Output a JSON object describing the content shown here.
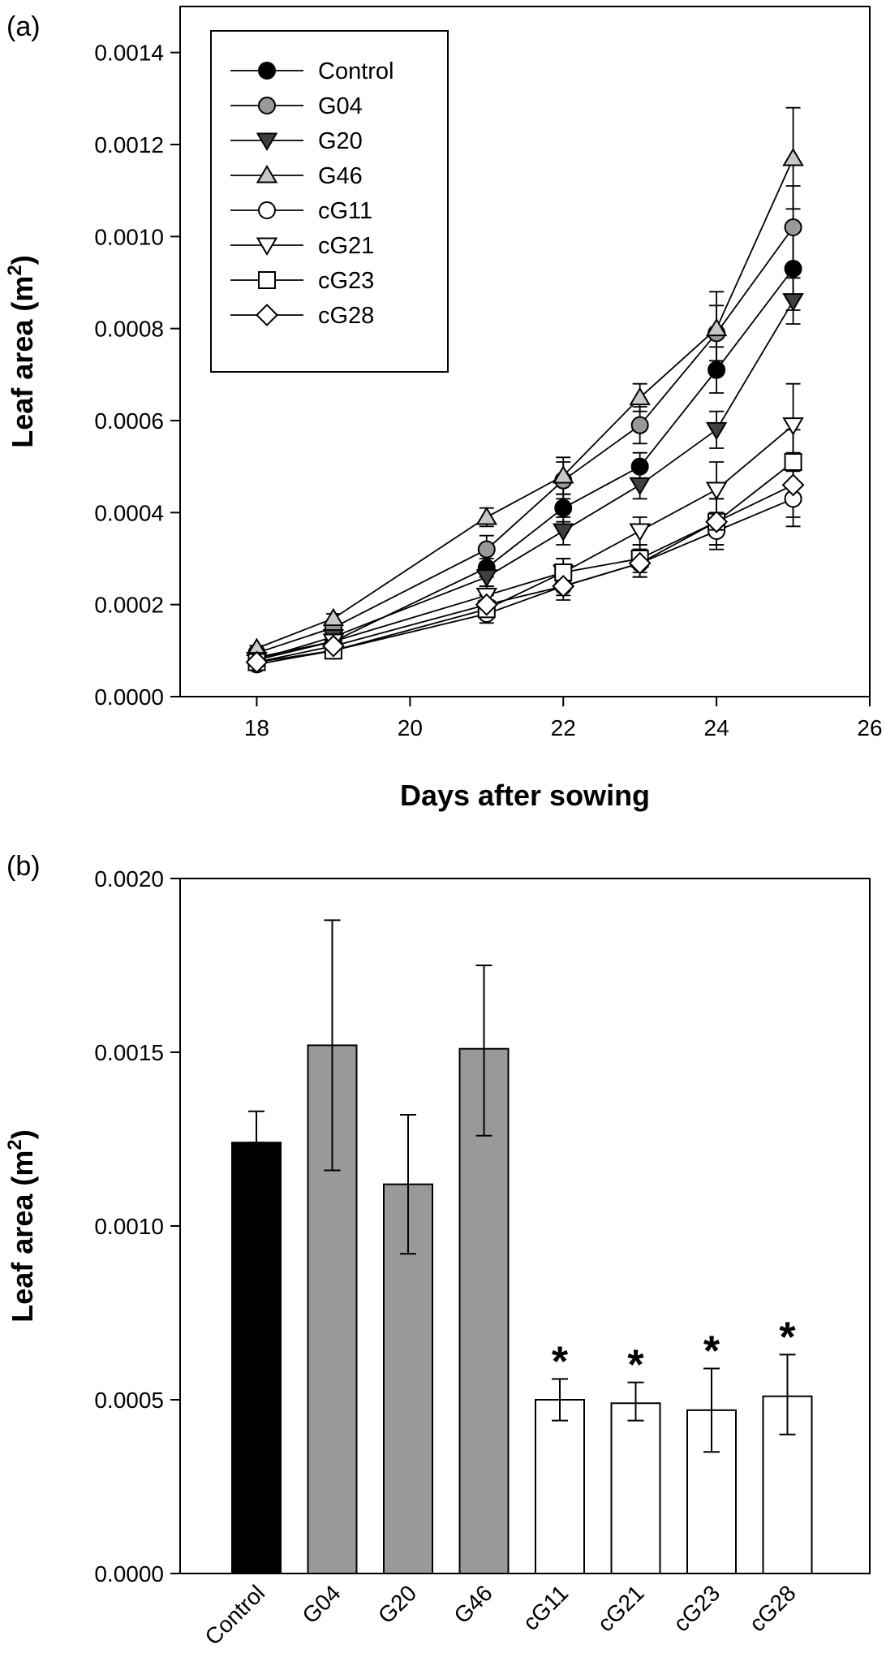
{
  "panels": {
    "a": "(a)",
    "b": "(b)"
  },
  "chart_data": [
    {
      "panel": "(a)",
      "type": "line",
      "xlabel": "Days after sowing",
      "ylabel": "Leaf area (m",
      "ylabel_sup": "2",
      "ylabel_close": ")",
      "xlim": [
        17,
        26
      ],
      "ylim": [
        0,
        0.0015
      ],
      "xticks": [
        18,
        20,
        22,
        24,
        26
      ],
      "yticks": [
        "0.0000",
        "0.0002",
        "0.0004",
        "0.0006",
        "0.0008",
        "0.0010",
        "0.0012",
        "0.0014"
      ],
      "legend_position": "top-left",
      "x": [
        18,
        19,
        21,
        22,
        23,
        24,
        25
      ],
      "series": [
        {
          "name": "Control",
          "marker": "circle",
          "fill": "#000000",
          "values": [
            8.5e-05,
            0.00012,
            0.00028,
            0.00041,
            0.0005,
            0.00071,
            0.00093
          ],
          "err": [
            6e-06,
            1e-05,
            2e-05,
            3e-05,
            3e-05,
            5e-05,
            9e-05
          ]
        },
        {
          "name": "G04",
          "marker": "circle",
          "fill": "#999999",
          "values": [
            9.5e-05,
            0.00015,
            0.00032,
            0.00047,
            0.00059,
            0.00079,
            0.00102
          ],
          "err": [
            6e-06,
            1e-05,
            3e-05,
            4e-05,
            4e-05,
            6e-05,
            9e-05
          ]
        },
        {
          "name": "G20",
          "marker": "triangle-down",
          "fill": "#404040",
          "values": [
            8e-05,
            0.00013,
            0.00026,
            0.00036,
            0.00046,
            0.00058,
            0.00086
          ],
          "err": [
            6e-06,
            1e-05,
            2e-05,
            3e-05,
            3e-05,
            4e-05,
            5e-05
          ]
        },
        {
          "name": "G46",
          "marker": "triangle-up",
          "fill": "#c8c8c8",
          "values": [
            0.000105,
            0.00017,
            0.00039,
            0.00048,
            0.00065,
            0.0008,
            0.00117
          ],
          "err": [
            6e-06,
            1e-05,
            2e-05,
            4e-05,
            3e-05,
            8e-05,
            0.00011
          ]
        },
        {
          "name": "cG11",
          "marker": "circle",
          "fill": "#ffffff",
          "values": [
            7e-05,
            0.0001,
            0.00018,
            0.00024,
            0.00029,
            0.00036,
            0.00043
          ],
          "err": [
            6e-06,
            1e-05,
            2e-05,
            2e-05,
            3e-05,
            4e-05,
            6e-05
          ]
        },
        {
          "name": "cG21",
          "marker": "triangle-down",
          "fill": "#ffffff",
          "values": [
            8e-05,
            0.00012,
            0.00022,
            0.00027,
            0.00036,
            0.00045,
            0.00059
          ],
          "err": [
            6e-06,
            1e-05,
            2e-05,
            3e-05,
            3e-05,
            6e-05,
            9e-05
          ]
        },
        {
          "name": "cG23",
          "marker": "square",
          "fill": "#ffffff",
          "values": [
            7.5e-05,
            0.0001,
            0.00019,
            0.00027,
            0.0003,
            0.00038,
            0.00051
          ],
          "err": [
            6e-06,
            1e-05,
            2e-05,
            3e-05,
            3e-05,
            5e-05,
            7e-05
          ]
        },
        {
          "name": "cG28",
          "marker": "diamond",
          "fill": "#ffffff",
          "values": [
            7.5e-05,
            0.00011,
            0.0002,
            0.00024,
            0.00029,
            0.00038,
            0.00046
          ],
          "err": [
            6e-06,
            1e-05,
            2e-05,
            3e-05,
            3e-05,
            5e-05,
            7e-05
          ]
        }
      ]
    },
    {
      "panel": "(b)",
      "type": "bar",
      "xlabel": "",
      "ylabel": "Leaf area (m",
      "ylabel_sup": "2",
      "ylabel_close": ")",
      "ylim": [
        0,
        0.002
      ],
      "yticks": [
        "0.0000",
        "0.0005",
        "0.0010",
        "0.0015",
        "0.0020"
      ],
      "categories": [
        "Control",
        "G04",
        "G20",
        "G46",
        "cG11",
        "cG21",
        "cG23",
        "cG28"
      ],
      "values": [
        0.00124,
        0.00152,
        0.00112,
        0.00151,
        0.0005,
        0.00049,
        0.00047,
        0.00051
      ],
      "err_upper": [
        0.00133,
        0.00188,
        0.00132,
        0.00175,
        0.00056,
        0.00055,
        0.00059,
        0.00063
      ],
      "err_lower": [
        0.00124,
        0.00116,
        0.00092,
        0.00126,
        0.00044,
        0.00044,
        0.00035,
        0.0004
      ],
      "colors": [
        "#000000",
        "#999999",
        "#999999",
        "#999999",
        "#ffffff",
        "#ffffff",
        "#ffffff",
        "#ffffff"
      ],
      "significance": [
        "",
        "",
        "",
        "",
        "*",
        "*",
        "*",
        "*"
      ]
    }
  ]
}
